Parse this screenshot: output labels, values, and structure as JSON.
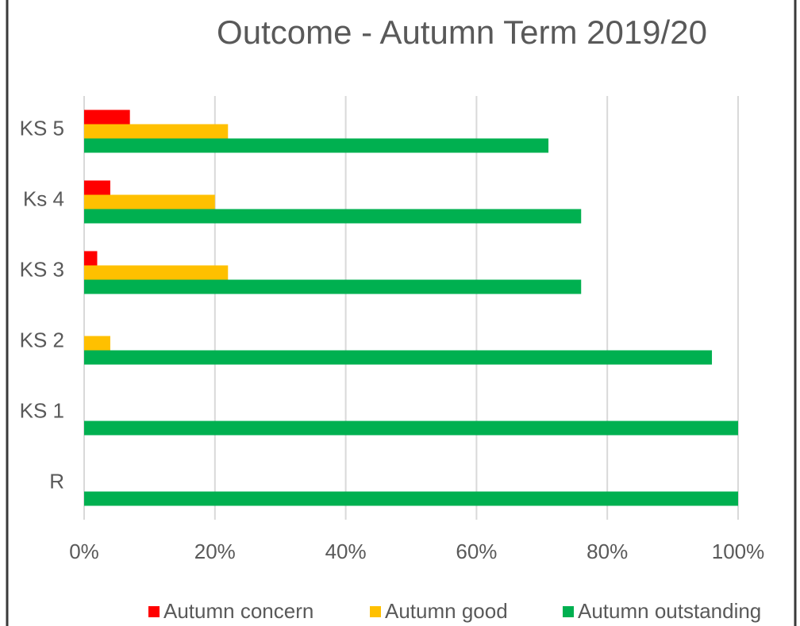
{
  "chart_data": {
    "type": "hbar",
    "title": "Outcome - Autumn Term 2019/20",
    "categories": [
      "KS 5",
      "Ks 4",
      "KS 3",
      "KS 2",
      "KS 1",
      "R"
    ],
    "series": [
      {
        "name": "Autumn concern",
        "color": "#ff0000",
        "values": [
          7,
          4,
          2,
          0,
          0,
          0
        ]
      },
      {
        "name": "Autumn good",
        "color": "#ffc000",
        "values": [
          22,
          20,
          22,
          4,
          0,
          0
        ]
      },
      {
        "name": "Autumn outstanding",
        "color": "#00b050",
        "values": [
          71,
          76,
          76,
          96,
          100,
          100
        ]
      }
    ],
    "xlim": [
      0,
      100
    ],
    "xticks": [
      {
        "value": 0,
        "label": "0%"
      },
      {
        "value": 20,
        "label": "20%"
      },
      {
        "value": 40,
        "label": "40%"
      },
      {
        "value": 60,
        "label": "60%"
      },
      {
        "value": 80,
        "label": "80%"
      },
      {
        "value": 100,
        "label": "100%"
      }
    ],
    "grid": true,
    "legend": "bottom"
  }
}
